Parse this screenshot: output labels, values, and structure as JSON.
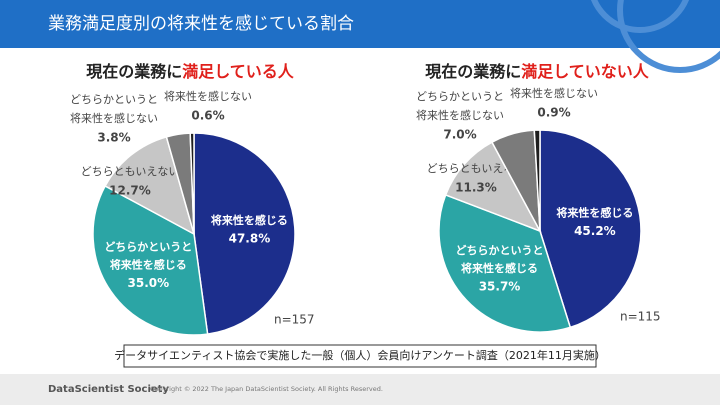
{
  "header": {
    "title": "業務満足度別の将来性を感じている割合"
  },
  "chart_data": [
    {
      "type": "pie",
      "title_prefix": "現在の業務に",
      "title_emphasis": "満足している人",
      "categories": [
        "将来性を感じる",
        "どちらかというと\n将来性を感じる",
        "どちらともいえない",
        "どちらかというと\n将来性を感じない",
        "将来性を感じない"
      ],
      "values": [
        47.8,
        35.0,
        12.7,
        3.8,
        0.6
      ],
      "value_labels": [
        "47.8%",
        "35.0%",
        "12.7%",
        "3.8%",
        "0.6%"
      ],
      "colors": [
        "#1c2e8c",
        "#2ba5a5",
        "#c6c6c6",
        "#7b7b7b",
        "#1e1e1e"
      ],
      "annotation": "n=157"
    },
    {
      "type": "pie",
      "title_prefix": "現在の業務に",
      "title_emphasis": "満足していない人",
      "categories": [
        "将来性を感じる",
        "どちらかというと\n将来性を感じる",
        "どちらともいえない",
        "どちらかというと\n将来性を感じない",
        "将来性を感じない"
      ],
      "values": [
        45.2,
        35.7,
        11.3,
        7.0,
        0.9
      ],
      "value_labels": [
        "45.2%",
        "35.7%",
        "11.3%",
        "7.0%",
        "0.9%"
      ],
      "colors": [
        "#1c2e8c",
        "#2ba5a5",
        "#c6c6c6",
        "#7b7b7b",
        "#1e1e1e"
      ],
      "annotation": "n=115"
    }
  ],
  "note": "データサイエンティスト協会で実施した一般（個人）会員向けアンケート調査（2021年11月実施）",
  "footer": {
    "brand": "DataScientist Society",
    "copyright": "Copyright © 2022  The Japan DataScientist Society. All Rights Reserved."
  }
}
